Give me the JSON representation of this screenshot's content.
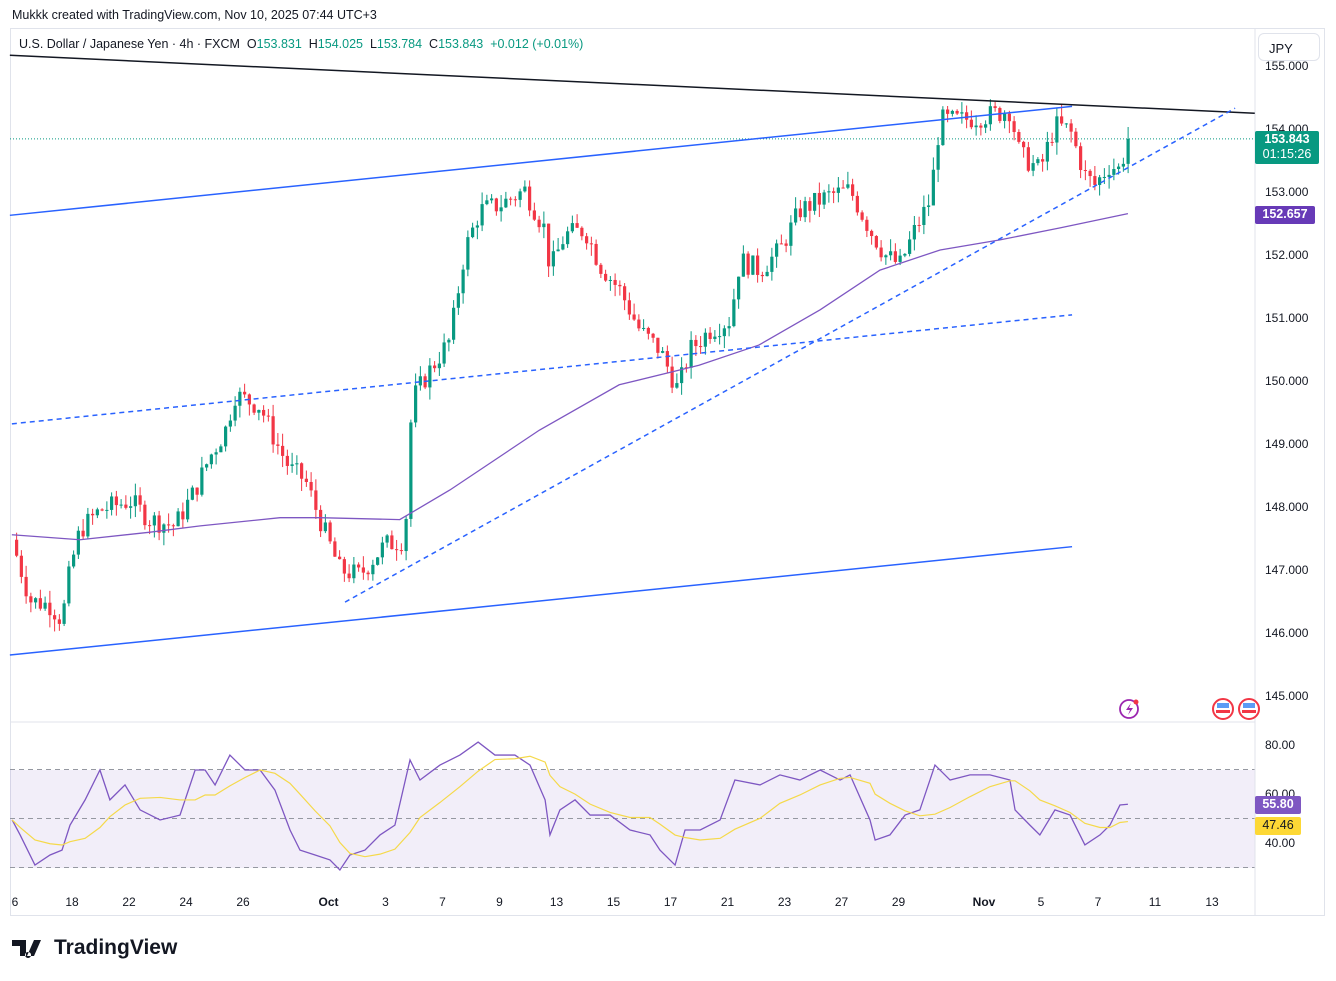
{
  "credit": "Mukkk created with TradingView.com, Nov 10, 2025 07:44 UTC+3",
  "legend": {
    "symbol": "U.S. Dollar / Japanese Yen · 4h · FXCM",
    "o_label": "O",
    "o": "153.831",
    "h_label": "H",
    "h": "154.025",
    "l_label": "L",
    "l": "153.784",
    "c_label": "C",
    "c": "153.843",
    "change": "+0.012 (+0.01%)"
  },
  "currency_button": "JPY",
  "last_price": "153.843",
  "countdown": "01:15:26",
  "ma_value": "152.657",
  "rsi_value": "55.80",
  "rsi_ma_value": "47.46",
  "brand": "TradingView",
  "colors": {
    "up": "#089981",
    "down": "#f23645",
    "ma": "#7e57c2",
    "rsi": "#7e57c2",
    "rsi_ma": "#f5d94a",
    "channel": "#2962ff",
    "trend": "#131722"
  },
  "chart_data": {
    "type": "candlestick",
    "title": "U.S. Dollar / Japanese Yen · 4h · FXCM",
    "x_unit": "trading days since Sep 16",
    "ylim": [
      145,
      155
    ],
    "price_ticks": [
      "155.000",
      "154.000",
      "153.000",
      "152.000",
      "151.000",
      "150.000",
      "149.000",
      "148.000",
      "147.000",
      "146.000",
      "145.000"
    ],
    "rsi_ticks": [
      "80.00",
      "60.00",
      "40.00"
    ],
    "x_ticks": [
      {
        "d": 0,
        "label": "6"
      },
      {
        "d": 2,
        "label": "18"
      },
      {
        "d": 4,
        "label": "22"
      },
      {
        "d": 6,
        "label": "24"
      },
      {
        "d": 8,
        "label": "26"
      },
      {
        "d": 11,
        "label": "Oct"
      },
      {
        "d": 13,
        "label": "3"
      },
      {
        "d": 15,
        "label": "7"
      },
      {
        "d": 17,
        "label": "9"
      },
      {
        "d": 19,
        "label": "13"
      },
      {
        "d": 21,
        "label": "15"
      },
      {
        "d": 23,
        "label": "17"
      },
      {
        "d": 25,
        "label": "21"
      },
      {
        "d": 27,
        "label": "23"
      },
      {
        "d": 29,
        "label": "27"
      },
      {
        "d": 31,
        "label": "29"
      },
      {
        "d": 34,
        "label": "Nov"
      },
      {
        "d": 36,
        "label": "5"
      },
      {
        "d": 38,
        "label": "7"
      },
      {
        "d": 40,
        "label": "11"
      },
      {
        "d": 42,
        "label": "13"
      }
    ],
    "price_path": [
      [
        -0.11,
        147.48
      ],
      [
        0.53,
        146.52
      ],
      [
        1.23,
        146.44
      ],
      [
        1.65,
        146.2
      ],
      [
        1.93,
        147.0
      ],
      [
        2.28,
        147.63
      ],
      [
        2.98,
        147.95
      ],
      [
        4.04,
        148.1
      ],
      [
        4.74,
        147.8
      ],
      [
        5.61,
        147.7
      ],
      [
        6.32,
        148.27
      ],
      [
        6.84,
        148.8
      ],
      [
        7.37,
        149.2
      ],
      [
        7.72,
        149.78
      ],
      [
        8.6,
        149.6
      ],
      [
        9.12,
        149.06
      ],
      [
        9.65,
        148.6
      ],
      [
        10.18,
        148.43
      ],
      [
        10.7,
        147.8
      ],
      [
        11.4,
        147.0
      ],
      [
        12.1,
        146.92
      ],
      [
        12.98,
        147.4
      ],
      [
        13.68,
        147.48
      ],
      [
        13.93,
        149.7
      ],
      [
        14.56,
        150.17
      ],
      [
        15.26,
        150.65
      ],
      [
        15.79,
        152.08
      ],
      [
        16.32,
        152.71
      ],
      [
        17.02,
        152.8
      ],
      [
        17.89,
        153.03
      ],
      [
        18.6,
        152.4
      ],
      [
        18.77,
        151.76
      ],
      [
        19.3,
        152.32
      ],
      [
        20.0,
        152.4
      ],
      [
        20.53,
        151.84
      ],
      [
        21.23,
        151.44
      ],
      [
        21.93,
        150.8
      ],
      [
        22.63,
        150.49
      ],
      [
        23.26,
        149.86
      ],
      [
        23.68,
        150.49
      ],
      [
        24.39,
        150.81
      ],
      [
        25.09,
        150.97
      ],
      [
        25.44,
        151.92
      ],
      [
        26.14,
        151.76
      ],
      [
        26.84,
        152.08
      ],
      [
        27.54,
        152.71
      ],
      [
        28.6,
        152.95
      ],
      [
        29.3,
        153.03
      ],
      [
        30.0,
        152.4
      ],
      [
        30.53,
        152.0
      ],
      [
        31.05,
        151.84
      ],
      [
        31.58,
        152.4
      ],
      [
        32.11,
        152.87
      ],
      [
        32.46,
        154.14
      ],
      [
        33.16,
        154.14
      ],
      [
        34.21,
        154.22
      ],
      [
        34.91,
        154.3
      ],
      [
        35.26,
        153.59
      ],
      [
        35.96,
        153.35
      ],
      [
        36.49,
        154.06
      ],
      [
        37.02,
        153.98
      ],
      [
        37.54,
        153.27
      ],
      [
        37.89,
        153.11
      ],
      [
        38.42,
        153.43
      ],
      [
        38.77,
        153.35
      ],
      [
        39.05,
        153.843
      ]
    ],
    "ma_path": [
      [
        -0.11,
        147.56
      ],
      [
        2.28,
        147.48
      ],
      [
        4.74,
        147.6
      ],
      [
        6.5,
        147.7
      ],
      [
        9.3,
        147.83
      ],
      [
        10.7,
        147.83
      ],
      [
        13.5,
        147.8
      ],
      [
        15.26,
        148.27
      ],
      [
        18.4,
        149.22
      ],
      [
        21.2,
        149.94
      ],
      [
        24.0,
        150.25
      ],
      [
        26.1,
        150.57
      ],
      [
        28.25,
        151.13
      ],
      [
        30.35,
        151.76
      ],
      [
        32.46,
        152.08
      ],
      [
        34.56,
        152.24
      ],
      [
        36.67,
        152.43
      ],
      [
        39.05,
        152.657
      ]
    ],
    "drawings": [
      {
        "name": "trend-line",
        "style": "solid",
        "color": "#131722",
        "from": [
          -0.18,
          155.17
        ],
        "to": [
          43.5,
          154.25
        ]
      },
      {
        "name": "channel-upper",
        "style": "solid",
        "color": "#2962ff",
        "from": [
          -0.18,
          152.63
        ],
        "to": [
          37.09,
          154.36
        ]
      },
      {
        "name": "channel-lower",
        "style": "solid",
        "color": "#2962ff",
        "from": [
          -0.18,
          145.65
        ],
        "to": [
          37.09,
          147.37
        ]
      },
      {
        "name": "mid-dashed-line",
        "style": "dashed",
        "color": "#2962ff",
        "from": [
          -0.11,
          149.32
        ],
        "to": [
          37.09,
          151.05
        ]
      },
      {
        "name": "support-dashed-line",
        "style": "dashed",
        "color": "#2962ff",
        "from": [
          11.58,
          146.49
        ],
        "to": [
          42.81,
          154.33
        ]
      }
    ],
    "rsi": {
      "ylim": [
        25,
        85
      ],
      "band": [
        30,
        70
      ],
      "mid": 50,
      "points": [
        [
          -0.1,
          49.4
        ],
        [
          0.18,
          43.3
        ],
        [
          0.7,
          31
        ],
        [
          1.23,
          35.1
        ],
        [
          1.65,
          37.1
        ],
        [
          1.93,
          47.3
        ],
        [
          2.46,
          57.6
        ],
        [
          2.98,
          69.8
        ],
        [
          3.33,
          57.6
        ],
        [
          3.86,
          63.7
        ],
        [
          4.39,
          53.5
        ],
        [
          5.09,
          49.4
        ],
        [
          5.79,
          51.4
        ],
        [
          6.32,
          69.8
        ],
        [
          6.67,
          69.8
        ],
        [
          7.02,
          63.7
        ],
        [
          7.54,
          75.9
        ],
        [
          8.07,
          69.8
        ],
        [
          8.6,
          69.8
        ],
        [
          9.12,
          61.6
        ],
        [
          9.65,
          45.3
        ],
        [
          10,
          37.1
        ],
        [
          10.53,
          35.1
        ],
        [
          11.05,
          33.1
        ],
        [
          11.4,
          29
        ],
        [
          11.75,
          35.1
        ],
        [
          12.28,
          37.1
        ],
        [
          12.81,
          43.3
        ],
        [
          13.33,
          47.3
        ],
        [
          13.86,
          73.9
        ],
        [
          14.21,
          65.7
        ],
        [
          14.91,
          71.8
        ],
        [
          15.61,
          75.9
        ],
        [
          16.25,
          81.2
        ],
        [
          16.84,
          75.9
        ],
        [
          17.54,
          75.9
        ],
        [
          18.07,
          71.8
        ],
        [
          18.6,
          57.6
        ],
        [
          18.77,
          43.3
        ],
        [
          19.12,
          53.5
        ],
        [
          19.65,
          57.6
        ],
        [
          20.18,
          51.4
        ],
        [
          20.88,
          51.4
        ],
        [
          21.58,
          45.3
        ],
        [
          22.28,
          43.3
        ],
        [
          22.63,
          37.1
        ],
        [
          23.16,
          31
        ],
        [
          23.51,
          45.3
        ],
        [
          24.04,
          45.3
        ],
        [
          24.74,
          49.4
        ],
        [
          25.26,
          65.7
        ],
        [
          26.14,
          63.7
        ],
        [
          26.84,
          67.8
        ],
        [
          27.54,
          65.7
        ],
        [
          28.25,
          69.8
        ],
        [
          28.95,
          65.7
        ],
        [
          29.3,
          67.8
        ],
        [
          30,
          49.4
        ],
        [
          30.18,
          41.2
        ],
        [
          30.7,
          43.3
        ],
        [
          31.23,
          51.4
        ],
        [
          31.75,
          53.5
        ],
        [
          32.28,
          71.8
        ],
        [
          32.81,
          65.7
        ],
        [
          33.51,
          67.8
        ],
        [
          34.21,
          67.8
        ],
        [
          34.91,
          65.7
        ],
        [
          35.09,
          53.5
        ],
        [
          35.61,
          47.3
        ],
        [
          35.96,
          43.3
        ],
        [
          36.49,
          53.5
        ],
        [
          37.02,
          51.4
        ],
        [
          37.54,
          39.2
        ],
        [
          38.07,
          43.3
        ],
        [
          38.42,
          47.3
        ],
        [
          38.77,
          55.5
        ],
        [
          39.05,
          55.8
        ]
      ]
    }
  }
}
